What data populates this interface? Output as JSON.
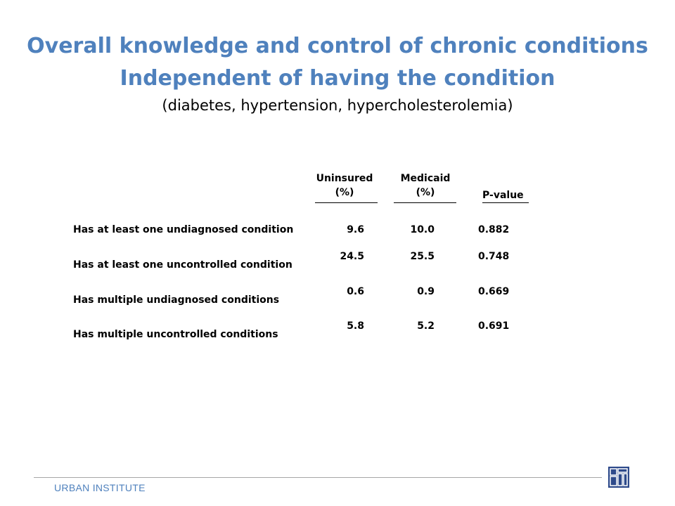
{
  "title": {
    "line1": "Overall knowledge and control of chronic conditions",
    "line2": "Independent of having the condition",
    "subtitle": "(diabetes, hypertension, hypercholesterolemia)"
  },
  "table": {
    "headers": {
      "uninsured_line1": "Uninsured",
      "uninsured_line2": "(%)",
      "medicaid_line1": "Medicaid",
      "medicaid_line2": "(%)",
      "pvalue": "P-value"
    },
    "rows": [
      {
        "label": "Has at least one undiagnosed condition",
        "uninsured": "9.6",
        "medicaid": "10.0",
        "pvalue": "0.882"
      },
      {
        "label": "Has at least one uncontrolled condition",
        "uninsured": "24.5",
        "medicaid": "25.5",
        "pvalue": "0.748"
      },
      {
        "label": "Has multiple undiagnosed conditions",
        "uninsured": "0.6",
        "medicaid": "0.9",
        "pvalue": "0.669"
      },
      {
        "label": "Has multiple uncontrolled conditions",
        "uninsured": "5.8",
        "medicaid": "5.2",
        "pvalue": "0.691"
      }
    ]
  },
  "footer": {
    "organization": "URBAN INSTITUTE",
    "logo_icon": "urban-institute-logo-icon",
    "accent_color": "#4f81bd"
  }
}
